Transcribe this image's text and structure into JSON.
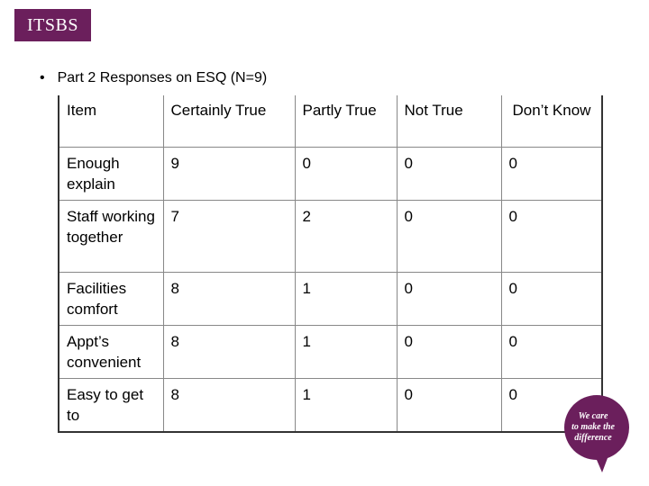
{
  "logo": {
    "text": "ITSBS"
  },
  "heading": {
    "bullet": "•",
    "text": "Part 2 Responses on ESQ (N=9)"
  },
  "table": {
    "headers": [
      "Item",
      "Certainly True",
      "Partly True",
      "Not True",
      "Don’t Know"
    ],
    "rows": [
      [
        "Enough explain",
        "9",
        "0",
        "0",
        "0"
      ],
      [
        "Staff working together",
        "7",
        "2",
        "0",
        "0"
      ],
      [
        "Facilities comfort",
        "8",
        "1",
        "0",
        "0"
      ],
      [
        "Appt’s convenient",
        "8",
        "1",
        "0",
        "0"
      ],
      [
        "Easy to get to",
        "8",
        "1",
        "0",
        "0"
      ]
    ]
  },
  "badge": {
    "line1": "We care",
    "line2": "to make the",
    "line3": "difference",
    "color": "#6b1f5c"
  }
}
